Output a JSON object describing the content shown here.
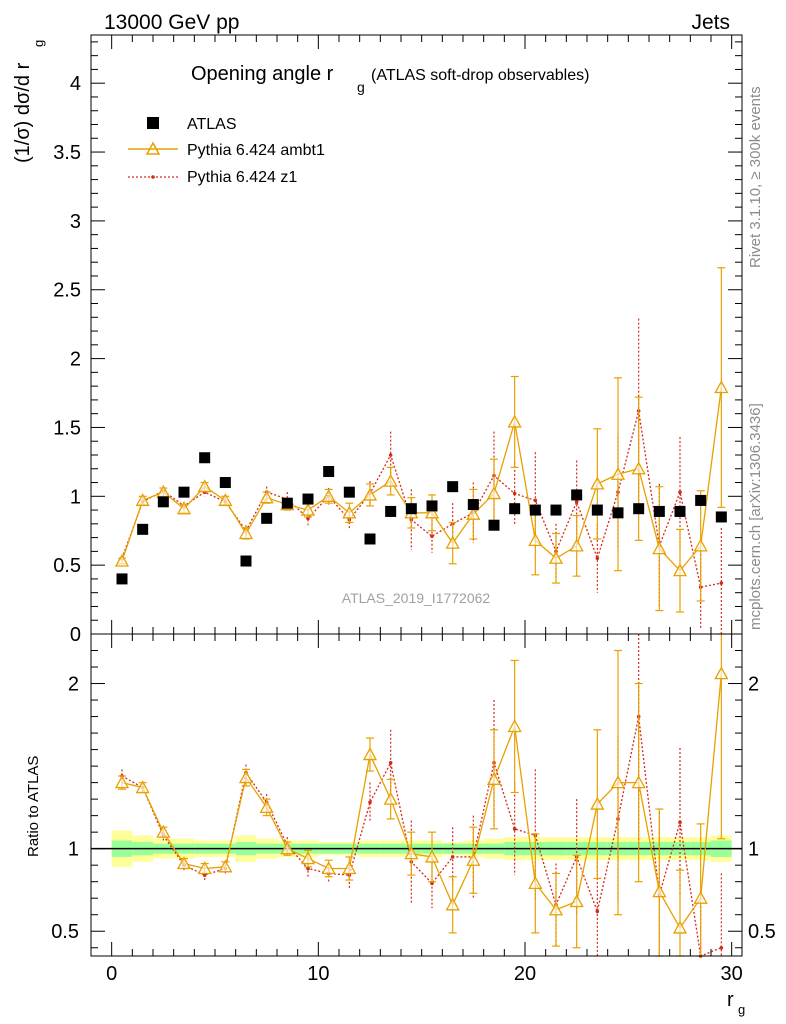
{
  "header": {
    "energy_label": "13000 GeV pp",
    "category_label": "Jets",
    "plot_title_main": "Opening angle r",
    "plot_title_sub": "g",
    "plot_title_suffix": "(ATLAS soft-drop observables)",
    "analysis_id": "ATLAS_2019_I1772062",
    "side_rivet": "Rivet 3.1.10, ≥ 300k events",
    "side_mcplots": "mcplots.cern.ch [arXiv:1306.3436]"
  },
  "legend": {
    "items": [
      {
        "label": "ATLAS",
        "color": "#000000"
      },
      {
        "label": "Pythia 6.424 ambt1",
        "color": "#e8a000"
      },
      {
        "label": "Pythia 6.424 z1",
        "color": "#d42a1a"
      }
    ]
  },
  "axes": {
    "top_ylabel": "(1/σ) dσ/d r",
    "top_ylabel_sub": "g",
    "ratio_ylabel": "Ratio to ATLAS",
    "xlabel": "r",
    "xlabel_sub": "g"
  },
  "chart_data": [
    {
      "type": "scatter",
      "panel": "main",
      "xlim": [
        -1,
        30.5
      ],
      "ylim": [
        0,
        4.35
      ],
      "x_ticks": [
        0,
        10,
        20,
        30
      ],
      "y_ticks": [
        0,
        0.5,
        1,
        1.5,
        2,
        2.5,
        3,
        3.5,
        4
      ],
      "x": [
        0.5,
        1.5,
        2.5,
        3.5,
        4.5,
        5.5,
        6.5,
        7.5,
        8.5,
        9.5,
        10.5,
        11.5,
        12.5,
        13.5,
        14.5,
        15.5,
        16.5,
        17.5,
        18.5,
        19.5,
        20.5,
        21.5,
        22.5,
        23.5,
        24.5,
        25.5,
        26.5,
        27.5,
        28.5,
        29.5
      ],
      "series": [
        {
          "name": "ATLAS",
          "values": [
            0.4,
            0.76,
            0.96,
            1.03,
            1.28,
            1.1,
            0.53,
            0.84,
            0.95,
            0.98,
            1.18,
            1.03,
            0.69,
            0.89,
            0.91,
            0.93,
            1.07,
            0.94,
            0.79,
            0.91,
            0.9,
            0.9,
            1.01,
            0.9,
            0.88,
            0.91,
            0.89,
            0.89,
            0.97,
            0.85
          ]
        },
        {
          "name": "Pythia 6.424 ambt1",
          "values": [
            0.53,
            0.97,
            1.03,
            0.91,
            1.07,
            0.97,
            0.73,
            0.99,
            0.94,
            0.9,
            1.0,
            0.88,
            1.01,
            1.11,
            0.88,
            0.88,
            0.66,
            0.87,
            1.02,
            1.54,
            0.68,
            0.55,
            0.64,
            1.09,
            1.16,
            1.2,
            0.62,
            0.46,
            0.64,
            1.79
          ],
          "errors": [
            0.02,
            0.03,
            0.03,
            0.03,
            0.03,
            0.03,
            0.04,
            0.04,
            0.04,
            0.05,
            0.05,
            0.07,
            0.08,
            0.1,
            0.11,
            0.13,
            0.15,
            0.18,
            0.25,
            0.33,
            0.25,
            0.18,
            0.22,
            0.4,
            0.7,
            0.52,
            0.45,
            0.3,
            0.4,
            0.87
          ]
        },
        {
          "name": "Pythia 6.424 z1",
          "values": [
            0.55,
            0.96,
            1.04,
            0.93,
            1.03,
            0.96,
            0.75,
            1.03,
            0.98,
            0.84,
            1.0,
            0.83,
            1.02,
            1.3,
            0.83,
            0.71,
            0.8,
            0.88,
            1.15,
            1.02,
            0.97,
            0.6,
            0.96,
            0.55,
            1.03,
            1.62,
            0.64,
            1.03,
            0.34,
            0.37
          ],
          "errors": [
            0.02,
            0.03,
            0.03,
            0.03,
            0.03,
            0.03,
            0.04,
            0.04,
            0.05,
            0.05,
            0.06,
            0.07,
            0.09,
            0.17,
            0.22,
            0.12,
            0.15,
            0.22,
            0.32,
            0.23,
            0.35,
            0.2,
            0.3,
            0.25,
            0.4,
            0.67,
            0.45,
            0.4,
            0.3,
            0.4
          ]
        }
      ]
    },
    {
      "type": "line",
      "panel": "ratio",
      "xlim": [
        -1,
        30.5
      ],
      "ylim": [
        0.35,
        2.3
      ],
      "y_ticks": [
        0.5,
        1,
        2
      ],
      "x": [
        0.5,
        1.5,
        2.5,
        3.5,
        4.5,
        5.5,
        6.5,
        7.5,
        8.5,
        9.5,
        10.5,
        11.5,
        12.5,
        13.5,
        14.5,
        15.5,
        16.5,
        17.5,
        18.5,
        19.5,
        20.5,
        21.5,
        22.5,
        23.5,
        24.5,
        25.5,
        26.5,
        27.5,
        28.5,
        29.5
      ],
      "band_inner": [
        0.05,
        0.04,
        0.03,
        0.03,
        0.03,
        0.03,
        0.04,
        0.03,
        0.03,
        0.03,
        0.03,
        0.03,
        0.03,
        0.03,
        0.03,
        0.03,
        0.03,
        0.03,
        0.03,
        0.04,
        0.04,
        0.04,
        0.04,
        0.04,
        0.04,
        0.04,
        0.04,
        0.04,
        0.04,
        0.05
      ],
      "band_outer": [
        0.11,
        0.08,
        0.06,
        0.06,
        0.05,
        0.05,
        0.08,
        0.06,
        0.05,
        0.05,
        0.04,
        0.04,
        0.05,
        0.05,
        0.05,
        0.05,
        0.04,
        0.05,
        0.06,
        0.07,
        0.07,
        0.07,
        0.07,
        0.07,
        0.07,
        0.07,
        0.07,
        0.07,
        0.07,
        0.08
      ],
      "series": [
        {
          "name": "Pythia 6.424 ambt1",
          "values": [
            1.4,
            1.37,
            1.1,
            0.91,
            0.88,
            0.89,
            1.43,
            1.25,
            1.0,
            0.94,
            0.88,
            0.88,
            1.57,
            1.3,
            0.97,
            0.95,
            0.66,
            0.93,
            1.42,
            1.74,
            0.79,
            0.63,
            0.68,
            1.27,
            1.4,
            1.4,
            0.74,
            0.52,
            0.7,
            2.06
          ],
          "errors": [
            0.04,
            0.03,
            0.03,
            0.03,
            0.03,
            0.03,
            0.05,
            0.05,
            0.04,
            0.05,
            0.05,
            0.07,
            0.1,
            0.12,
            0.13,
            0.15,
            0.17,
            0.2,
            0.3,
            0.4,
            0.3,
            0.22,
            0.28,
            0.45,
            0.8,
            0.6,
            0.5,
            0.35,
            0.45,
            1.0
          ]
        },
        {
          "name": "Pythia 6.424 z1",
          "values": [
            1.44,
            1.37,
            1.08,
            0.9,
            0.84,
            0.88,
            1.46,
            1.28,
            1.02,
            0.88,
            0.85,
            0.84,
            1.28,
            1.52,
            0.92,
            0.79,
            0.95,
            0.95,
            1.52,
            1.12,
            1.08,
            0.66,
            0.95,
            0.62,
            1.18,
            1.8,
            0.72,
            1.16,
            0.35,
            0.4
          ],
          "errors": [
            0.04,
            0.03,
            0.03,
            0.03,
            0.03,
            0.03,
            0.05,
            0.05,
            0.05,
            0.06,
            0.06,
            0.08,
            0.12,
            0.2,
            0.25,
            0.15,
            0.18,
            0.25,
            0.38,
            0.28,
            0.4,
            0.25,
            0.35,
            0.3,
            0.5,
            0.8,
            0.5,
            0.45,
            0.35,
            0.45
          ]
        }
      ]
    }
  ]
}
